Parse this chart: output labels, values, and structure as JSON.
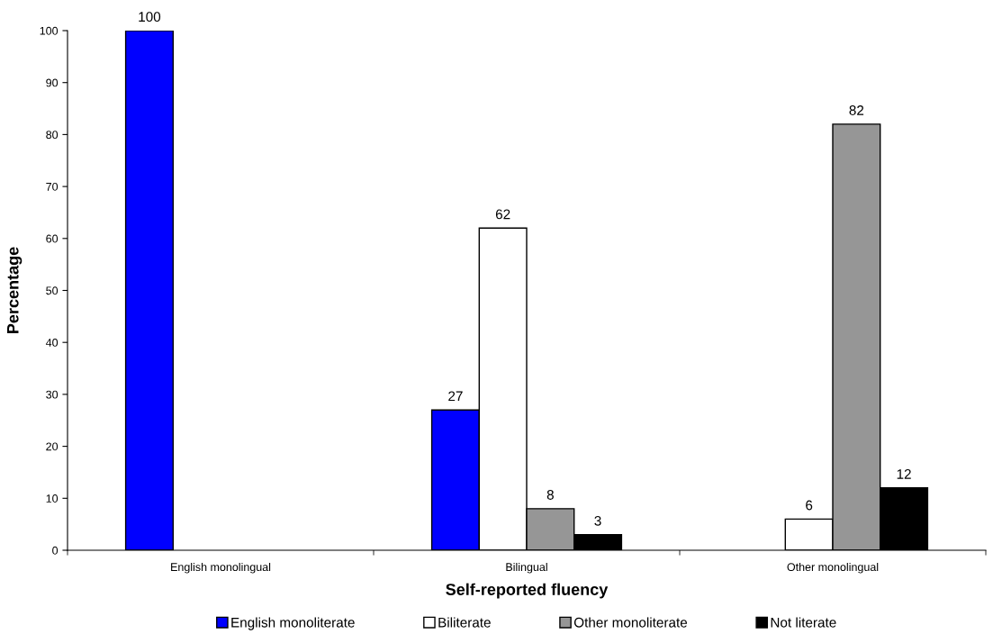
{
  "chart_data": {
    "type": "bar",
    "xlabel": "Self-reported fluency",
    "ylabel": "Percentage",
    "categories": [
      "English monolingual",
      "Bilingual",
      "Other monolingual"
    ],
    "series": [
      {
        "name": "English monoliterate",
        "color": "#0000ff",
        "values": [
          100,
          27,
          null
        ],
        "value_labels": [
          "100",
          "27",
          null
        ]
      },
      {
        "name": "Biliterate",
        "color": "#ffffff",
        "values": [
          null,
          62,
          6
        ],
        "value_labels": [
          null,
          "62",
          "6"
        ]
      },
      {
        "name": "Other monoliterate",
        "color": "#969696",
        "values": [
          null,
          8,
          82
        ],
        "value_labels": [
          null,
          "8",
          "82"
        ]
      },
      {
        "name": "Not literate",
        "color": "#000000",
        "values": [
          null,
          3,
          12
        ],
        "value_labels": [
          null,
          "3",
          "12"
        ]
      }
    ],
    "ylim": [
      0,
      100
    ],
    "yticks": [
      0,
      10,
      20,
      30,
      40,
      50,
      60,
      70,
      80,
      90,
      100
    ],
    "grid": false,
    "legend": "bottom"
  }
}
